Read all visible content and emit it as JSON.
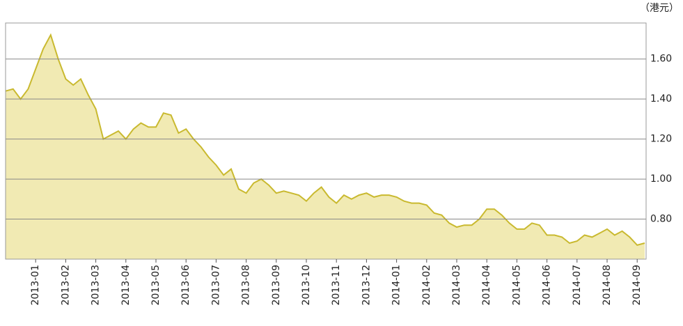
{
  "chart_data": {
    "type": "area",
    "y_unit_label": "（港元）",
    "categories": [
      null,
      null,
      null,
      null,
      "2013-01",
      null,
      null,
      null,
      "2013-02",
      null,
      null,
      null,
      "2013-03",
      null,
      null,
      null,
      "2013-04",
      null,
      null,
      null,
      "2013-05",
      null,
      null,
      null,
      "2013-06",
      null,
      null,
      null,
      "2013-07",
      null,
      null,
      null,
      "2013-08",
      null,
      null,
      null,
      "2013-09",
      null,
      null,
      null,
      "2013-10",
      null,
      null,
      null,
      "2013-11",
      null,
      null,
      null,
      "2013-12",
      null,
      null,
      null,
      "2014-01",
      null,
      null,
      null,
      "2014-02",
      null,
      null,
      null,
      "2014-03",
      null,
      null,
      null,
      "2014-04",
      null,
      null,
      null,
      "2014-05",
      null,
      null,
      null,
      "2014-06",
      null,
      null,
      null,
      "2014-07",
      null,
      null,
      null,
      "2014-08",
      null,
      null,
      null,
      "2014-09",
      null
    ],
    "values": [
      1.44,
      1.45,
      1.4,
      1.45,
      1.55,
      1.65,
      1.72,
      1.6,
      1.5,
      1.47,
      1.5,
      1.42,
      1.35,
      1.2,
      1.22,
      1.24,
      1.2,
      1.25,
      1.28,
      1.26,
      1.26,
      1.33,
      1.32,
      1.23,
      1.25,
      1.2,
      1.16,
      1.11,
      1.07,
      1.02,
      1.05,
      0.95,
      0.93,
      0.98,
      1.0,
      0.97,
      0.93,
      0.94,
      0.93,
      0.92,
      0.89,
      0.93,
      0.96,
      0.91,
      0.88,
      0.92,
      0.9,
      0.92,
      0.93,
      0.91,
      0.92,
      0.92,
      0.91,
      0.89,
      0.88,
      0.88,
      0.87,
      0.83,
      0.82,
      0.78,
      0.76,
      0.77,
      0.77,
      0.8,
      0.85,
      0.85,
      0.82,
      0.78,
      0.75,
      0.75,
      0.78,
      0.77,
      0.72,
      0.72,
      0.71,
      0.68,
      0.69,
      0.72,
      0.71,
      0.73,
      0.75,
      0.72,
      0.74,
      0.71,
      0.67,
      0.68
    ],
    "color": "#c9b92f",
    "fill": "#f1eab3",
    "ylim": [
      0.6,
      1.78
    ],
    "yticks": [
      {
        "value": 0.8,
        "label": "0.80"
      },
      {
        "value": 1.0,
        "label": "1.00"
      },
      {
        "value": 1.2,
        "label": "1.20"
      },
      {
        "value": 1.4,
        "label": "1.40"
      },
      {
        "value": 1.6,
        "label": "1.60"
      }
    ],
    "grid": true
  }
}
